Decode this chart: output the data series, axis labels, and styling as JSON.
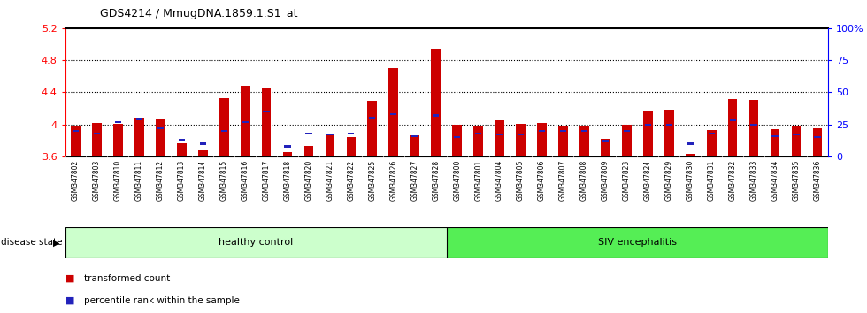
{
  "title": "GDS4214 / MmugDNA.1859.1.S1_at",
  "samples": [
    "GSM347802",
    "GSM347803",
    "GSM347810",
    "GSM347811",
    "GSM347812",
    "GSM347813",
    "GSM347814",
    "GSM347815",
    "GSM347816",
    "GSM347817",
    "GSM347818",
    "GSM347820",
    "GSM347821",
    "GSM347822",
    "GSM347825",
    "GSM347826",
    "GSM347827",
    "GSM347828",
    "GSM347800",
    "GSM347801",
    "GSM347804",
    "GSM347805",
    "GSM347806",
    "GSM347807",
    "GSM347808",
    "GSM347809",
    "GSM347823",
    "GSM347824",
    "GSM347829",
    "GSM347830",
    "GSM347831",
    "GSM347832",
    "GSM347833",
    "GSM347834",
    "GSM347835",
    "GSM347836"
  ],
  "red_values": [
    3.97,
    4.02,
    4.01,
    4.08,
    4.06,
    3.77,
    3.68,
    4.33,
    4.48,
    4.45,
    3.65,
    3.73,
    3.87,
    3.84,
    4.3,
    4.7,
    3.86,
    4.94,
    4.0,
    3.97,
    4.05,
    4.01,
    4.02,
    3.99,
    3.97,
    3.82,
    4.0,
    4.17,
    4.18,
    3.63,
    3.93,
    4.32,
    4.31,
    3.94,
    3.97,
    3.95
  ],
  "blue_percentile": [
    20,
    18,
    27,
    29,
    22,
    13,
    10,
    20,
    27,
    35,
    8,
    18,
    17,
    18,
    30,
    33,
    16,
    32,
    15,
    18,
    17,
    17,
    20,
    20,
    20,
    12,
    20,
    25,
    25,
    10,
    18,
    28,
    25,
    16,
    17,
    15
  ],
  "ylim_left": [
    3.6,
    5.2
  ],
  "ylim_right": [
    0,
    100
  ],
  "yticks_left": [
    3.6,
    4.0,
    4.4,
    4.8,
    5.2
  ],
  "ytick_labels_left": [
    "3.6",
    "4",
    "4.4",
    "4.8",
    "5.2"
  ],
  "ytick_dotted": [
    4.0,
    4.4,
    4.8
  ],
  "yticks_right": [
    0,
    25,
    50,
    75,
    100
  ],
  "ytick_labels_right": [
    "0",
    "25",
    "50",
    "75",
    "100%"
  ],
  "healthy_count": 18,
  "bar_color_red": "#cc0000",
  "bar_color_blue": "#2222bb",
  "healthy_box_color": "#ccffcc",
  "siv_box_color": "#55ee55",
  "disease_state_label": "disease state",
  "healthy_label": "healthy control",
  "siv_label": "SIV encephalitis",
  "legend_red": "transformed count",
  "legend_blue": "percentile rank within the sample",
  "bar_width": 0.45,
  "baseline": 3.6,
  "tick_bg": "#d0d0d0"
}
